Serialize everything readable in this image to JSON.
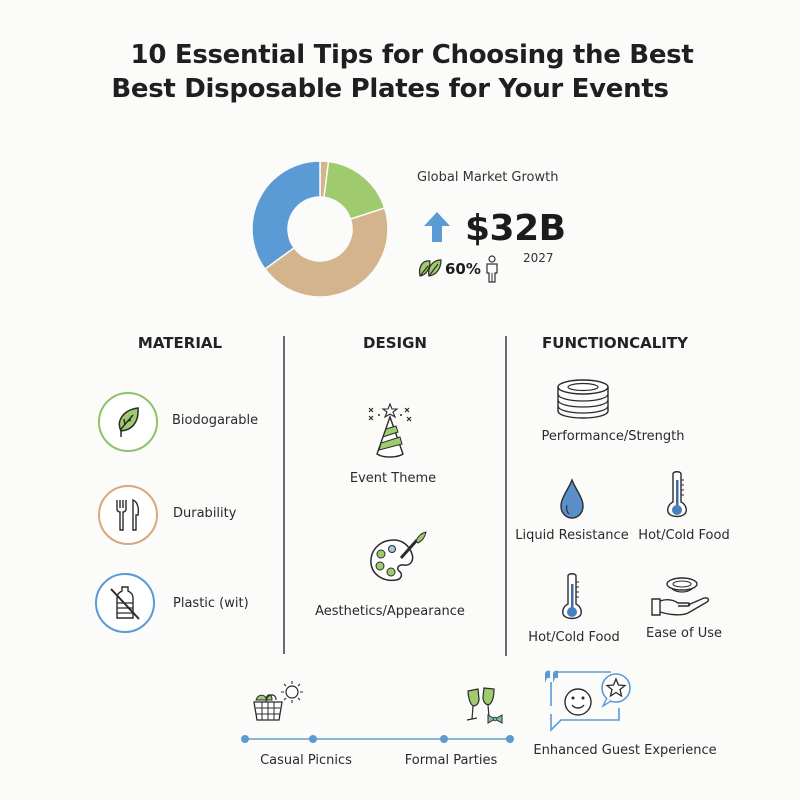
{
  "title": {
    "line1": "10 Essential Tips for Choosing the Best",
    "line2": "Best Disposable Plates for Your Events"
  },
  "market": {
    "label": "Global Market Growth",
    "value": "$32B",
    "year": "2027",
    "eco_percent": "60%",
    "icons": [
      "arrow-up-icon",
      "leaf-icon",
      "person-icon"
    ]
  },
  "colors": {
    "blue": "#5b9bd5",
    "tan": "#d4b48c",
    "green": "#9fcb6e",
    "divider": "#6c6c70",
    "timeline": "#8ab4d6"
  },
  "chart_data": {
    "type": "pie",
    "title": "",
    "donut": true,
    "categories": [
      "Tan (small)",
      "Green",
      "Tan (large)",
      "Blue"
    ],
    "values": [
      2,
      18,
      45,
      35
    ],
    "colors": [
      "#d4b48c",
      "#9fcb6e",
      "#d4b48c",
      "#5b9bd5"
    ],
    "legend": "none",
    "start_angle": "top, clockwise"
  },
  "columns": {
    "material": {
      "heading": "MATERIAL",
      "items": [
        {
          "label": "Biodogarable",
          "icon": "leaf-icon",
          "ring": "#8cc46a"
        },
        {
          "label": "Durability",
          "icon": "fork-knife-icon",
          "ring": "#d9a878"
        },
        {
          "label": "Plastic (wit)",
          "icon": "no-plastic-bottle-icon",
          "ring": "#5b9bd5"
        }
      ]
    },
    "design": {
      "heading": "DESIGN",
      "items": [
        {
          "label": "Event Theme",
          "icon": "party-hat-icon"
        },
        {
          "label": "Aesthetics/Appearance",
          "icon": "paint-palette-icon"
        }
      ]
    },
    "functionality": {
      "heading": "FUNCTIONCALITY",
      "items": [
        {
          "label": "Performance/Strength",
          "icon": "stacked-plates-icon"
        },
        {
          "label": "Liquid Resistance",
          "icon": "water-drop-icon"
        },
        {
          "label": "Hot/Cold Food",
          "icon": "thermometer-icon"
        },
        {
          "label": "Hot/Cold Food",
          "icon": "thermometer-icon"
        },
        {
          "label": "Ease of Use",
          "icon": "hand-plate-icon"
        }
      ]
    }
  },
  "timeline": {
    "points": [
      {
        "label": "Casual Picnics",
        "icon": "picnic-basket-sun-icon"
      },
      {
        "label": "Formal Parties",
        "icon": "champagne-bowtie-icon"
      }
    ]
  },
  "guest": {
    "label": "Enhanced Guest Experience",
    "icon": "speech-bubble-smiley-star-icon"
  }
}
